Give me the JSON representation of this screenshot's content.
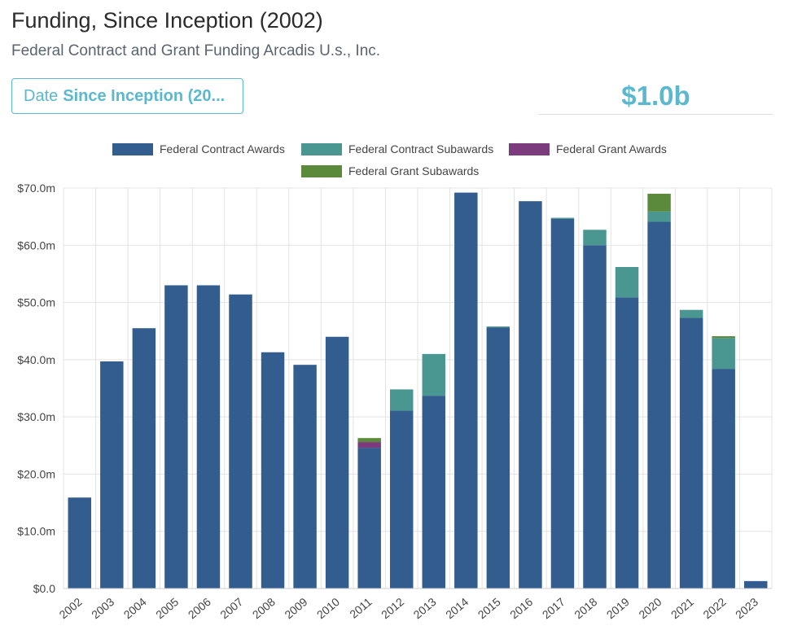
{
  "header": {
    "title": "Funding, Since Inception (2002)",
    "subtitle": "Federal Contract and Grant Funding Arcadis U.s., Inc."
  },
  "date_filter": {
    "label": "Date",
    "value": "Since Inception (20..."
  },
  "total": {
    "value": "$1.0b"
  },
  "colors": {
    "accent": "#5ab8cf",
    "contract_awards": "#335c8f",
    "contract_subawards": "#4a9691",
    "grant_awards": "#7b3b7c",
    "grant_subawards": "#5b8a3a"
  },
  "chart_data": {
    "type": "bar",
    "stacked": true,
    "categories": [
      "2002",
      "2003",
      "2004",
      "2005",
      "2006",
      "2007",
      "2008",
      "2009",
      "2010",
      "2011",
      "2012",
      "2013",
      "2014",
      "2015",
      "2016",
      "2017",
      "2018",
      "2019",
      "2020",
      "2021",
      "2022",
      "2023"
    ],
    "series": [
      {
        "name": "Federal Contract Awards",
        "color": "#335c8f",
        "values": [
          15.9,
          39.7,
          45.5,
          53.0,
          53.0,
          51.4,
          41.3,
          39.1,
          44.0,
          24.6,
          31.1,
          33.7,
          69.2,
          45.6,
          67.7,
          64.6,
          60.0,
          50.9,
          64.1,
          47.3,
          38.4,
          1.3
        ]
      },
      {
        "name": "Federal Contract Subawards",
        "color": "#4a9691",
        "values": [
          0,
          0,
          0,
          0,
          0,
          0,
          0,
          0,
          0,
          0,
          3.7,
          7.3,
          0,
          0.2,
          0,
          0.2,
          2.7,
          5.3,
          1.8,
          1.4,
          5.4,
          0
        ]
      },
      {
        "name": "Federal Grant Awards",
        "color": "#7b3b7c",
        "values": [
          0,
          0,
          0,
          0,
          0,
          0,
          0,
          0,
          0,
          1.0,
          0,
          0,
          0,
          0,
          0,
          0,
          0,
          0,
          0,
          0,
          0,
          0
        ]
      },
      {
        "name": "Federal Grant Subawards",
        "color": "#5b8a3a",
        "values": [
          0,
          0,
          0,
          0,
          0,
          0,
          0,
          0,
          0,
          0.7,
          0,
          0,
          0,
          0,
          0,
          0,
          0,
          0,
          3.1,
          0,
          0.3,
          0
        ]
      }
    ],
    "ylim": [
      0,
      70
    ],
    "yticks": [
      "$0.0",
      "$10.0m",
      "$20.0m",
      "$30.0m",
      "$40.0m",
      "$50.0m",
      "$60.0m",
      "$70.0m"
    ],
    "legend_position": "top",
    "grid": true
  }
}
